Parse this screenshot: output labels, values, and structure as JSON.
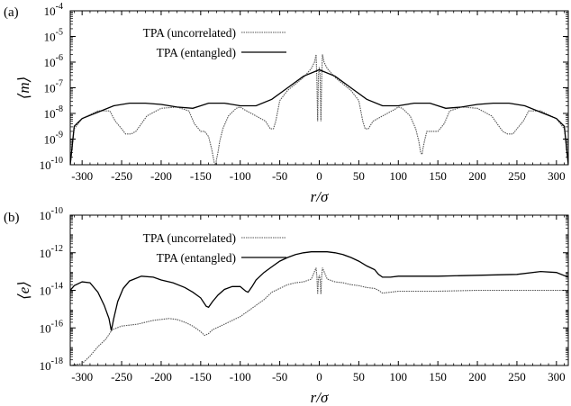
{
  "chart_data": [
    {
      "type": "line",
      "panel_label": "(a)",
      "xlabel": "r/σ",
      "ylabel": "⟨m⟩",
      "xlim": [
        -315,
        315
      ],
      "ylim_log10": [
        -10,
        -4
      ],
      "yscale": "log",
      "x_ticks": [
        -300,
        -250,
        -200,
        -150,
        -100,
        -50,
        0,
        50,
        100,
        150,
        200,
        250,
        300
      ],
      "y_tick_labels": [
        {
          "base": "10",
          "exp": "-10"
        },
        {
          "base": "10",
          "exp": "-9"
        },
        {
          "base": "10",
          "exp": "-8"
        },
        {
          "base": "10",
          "exp": "-7"
        },
        {
          "base": "10",
          "exp": "-6"
        },
        {
          "base": "10",
          "exp": "-5"
        },
        {
          "base": "10",
          "exp": "-4"
        }
      ],
      "legend_position": "top-left",
      "series": [
        {
          "name": "TPA (uncorrelated)",
          "color": "#555555",
          "style": "dotted-gray",
          "x": [
            -315,
            -310,
            -300,
            -280,
            -265,
            -258,
            -250,
            -245,
            -238,
            -232,
            -225,
            -218,
            -200,
            -180,
            -165,
            -158,
            -150,
            -145,
            -140,
            -136,
            -133,
            -131,
            -130,
            -128,
            -126,
            -122,
            -115,
            -105,
            -100,
            -95,
            -80,
            -68,
            -62,
            -58,
            -55,
            -50,
            -40,
            -30,
            -20,
            -10,
            -6,
            -4,
            -3,
            -2,
            -1,
            0,
            1,
            2,
            3,
            4,
            6,
            10,
            20,
            30,
            40,
            50,
            55,
            58,
            62,
            68,
            80,
            95,
            100,
            105,
            115,
            122,
            126,
            128,
            130,
            131,
            133,
            136,
            140,
            145,
            150,
            158,
            165,
            180,
            200,
            218,
            225,
            232,
            238,
            245,
            250,
            258,
            265,
            280,
            300,
            310,
            315
          ],
          "y": [
            -10,
            -8.6,
            -8.2,
            -7.9,
            -7.9,
            -8.3,
            -8.6,
            -8.8,
            -8.8,
            -8.7,
            -8.4,
            -8.1,
            -7.8,
            -7.75,
            -7.9,
            -8.4,
            -8.7,
            -8.7,
            -8.9,
            -9.4,
            -9.9,
            -10,
            -9.8,
            -9.5,
            -9.1,
            -8.6,
            -8.1,
            -7.8,
            -7.75,
            -7.85,
            -8.1,
            -8.3,
            -8.6,
            -8.6,
            -8.3,
            -7.5,
            -7.1,
            -6.85,
            -6.6,
            -6.25,
            -6.0,
            -5.7,
            -6.8,
            -8.3,
            -6.5,
            -6.2,
            -6.5,
            -8.3,
            -6.8,
            -5.7,
            -6.0,
            -6.25,
            -6.6,
            -6.85,
            -7.1,
            -7.5,
            -8.3,
            -8.6,
            -8.6,
            -8.3,
            -8.1,
            -7.85,
            -7.75,
            -7.8,
            -8.1,
            -8.6,
            -9.1,
            -9.5,
            -9.6,
            -9.4,
            -9.1,
            -8.7,
            -8.7,
            -8.7,
            -8.7,
            -8.4,
            -7.9,
            -7.75,
            -7.8,
            -8.1,
            -8.4,
            -8.7,
            -8.8,
            -8.8,
            -8.6,
            -8.3,
            -7.9,
            -7.9,
            -8.2,
            -8.6,
            -10
          ]
        },
        {
          "name": "TPA (entangled)",
          "color": "#000000",
          "style": "solid-black",
          "x": [
            -315,
            -310,
            -300,
            -280,
            -260,
            -240,
            -220,
            -200,
            -180,
            -160,
            -150,
            -140,
            -120,
            -100,
            -80,
            -60,
            -40,
            -20,
            0,
            20,
            40,
            60,
            80,
            100,
            120,
            140,
            150,
            160,
            180,
            200,
            220,
            240,
            260,
            280,
            300,
            310,
            315
          ],
          "y": [
            -10,
            -8.5,
            -8.2,
            -7.95,
            -7.7,
            -7.6,
            -7.6,
            -7.65,
            -7.75,
            -7.8,
            -7.7,
            -7.6,
            -7.6,
            -7.7,
            -7.7,
            -7.45,
            -7.0,
            -6.55,
            -6.3,
            -6.55,
            -7.0,
            -7.45,
            -7.7,
            -7.7,
            -7.6,
            -7.6,
            -7.7,
            -7.8,
            -7.75,
            -7.65,
            -7.6,
            -7.6,
            -7.7,
            -7.95,
            -8.2,
            -8.5,
            -10
          ]
        }
      ]
    },
    {
      "type": "line",
      "panel_label": "(b)",
      "xlabel": "r/σ",
      "ylabel": "⟨e⟩",
      "xlim": [
        -315,
        315
      ],
      "ylim_log10": [
        -18,
        -10
      ],
      "yscale": "log",
      "x_ticks": [
        -300,
        -250,
        -200,
        -150,
        -100,
        -50,
        0,
        50,
        100,
        150,
        200,
        250,
        300
      ],
      "y_tick_labels": [
        {
          "base": "10",
          "exp": "-18"
        },
        {
          "base": "10",
          "exp": "-16"
        },
        {
          "base": "10",
          "exp": "-14"
        },
        {
          "base": "10",
          "exp": "-12"
        },
        {
          "base": "10",
          "exp": "-10"
        }
      ],
      "legend_position": "top-left",
      "series": [
        {
          "name": "TPA (uncorrelated)",
          "color": "#555555",
          "style": "dotted-gray",
          "x": [
            -315,
            -300,
            -290,
            -280,
            -270,
            -262,
            -250,
            -230,
            -210,
            -190,
            -180,
            -170,
            -160,
            -150,
            -145,
            -140,
            -135,
            -125,
            -115,
            -105,
            -100,
            -90,
            -80,
            -70,
            -60,
            -50,
            -40,
            -30,
            -20,
            -10,
            -6,
            -4,
            -3,
            -2,
            -1,
            0,
            1,
            2,
            3,
            4,
            6,
            10,
            20,
            30,
            40,
            50,
            60,
            70,
            75,
            80,
            90,
            100,
            150,
            200,
            250,
            300,
            315
          ],
          "y": [
            -18,
            -17.9,
            -17.5,
            -17.0,
            -16.6,
            -16.1,
            -15.9,
            -15.8,
            -15.6,
            -15.5,
            -15.55,
            -15.7,
            -15.9,
            -16.2,
            -16.4,
            -16.3,
            -16.1,
            -15.9,
            -15.7,
            -15.5,
            -15.4,
            -15.1,
            -14.8,
            -14.5,
            -14.1,
            -13.9,
            -13.7,
            -13.6,
            -13.55,
            -13.4,
            -13.0,
            -12.8,
            -13.3,
            -14.2,
            -13.4,
            -13.2,
            -13.4,
            -14.2,
            -13.3,
            -12.8,
            -13.0,
            -13.4,
            -13.55,
            -13.6,
            -13.7,
            -13.75,
            -13.85,
            -13.9,
            -14.0,
            -14.15,
            -14.1,
            -14.05,
            -14.05,
            -14.0,
            -14.0,
            -14.0,
            -14.0
          ]
        },
        {
          "name": "TPA (entangled)",
          "color": "#000000",
          "style": "solid-black",
          "x": [
            -315,
            -310,
            -300,
            -290,
            -280,
            -272,
            -266,
            -263,
            -260,
            -255,
            -248,
            -240,
            -225,
            -210,
            -200,
            -185,
            -170,
            -160,
            -150,
            -143,
            -140,
            -135,
            -128,
            -120,
            -110,
            -100,
            -93,
            -90,
            -85,
            -80,
            -70,
            -60,
            -50,
            -40,
            -30,
            -20,
            -10,
            0,
            10,
            20,
            30,
            40,
            50,
            60,
            70,
            75,
            80,
            90,
            100,
            150,
            200,
            250,
            280,
            300,
            315
          ],
          "y": [
            -14.0,
            -13.75,
            -13.55,
            -13.6,
            -14.1,
            -14.8,
            -15.5,
            -16.15,
            -15.5,
            -14.6,
            -13.9,
            -13.5,
            -13.25,
            -13.3,
            -13.45,
            -13.6,
            -13.85,
            -14.1,
            -14.4,
            -14.85,
            -14.9,
            -14.6,
            -14.25,
            -13.95,
            -13.8,
            -13.8,
            -14.05,
            -14.1,
            -13.8,
            -13.45,
            -13.05,
            -12.75,
            -12.45,
            -12.25,
            -12.1,
            -12.0,
            -11.95,
            -11.95,
            -11.95,
            -12.0,
            -12.1,
            -12.25,
            -12.45,
            -12.7,
            -12.9,
            -13.15,
            -13.3,
            -13.3,
            -13.25,
            -13.25,
            -13.2,
            -13.15,
            -13.0,
            -13.05,
            -13.3
          ]
        }
      ]
    }
  ]
}
